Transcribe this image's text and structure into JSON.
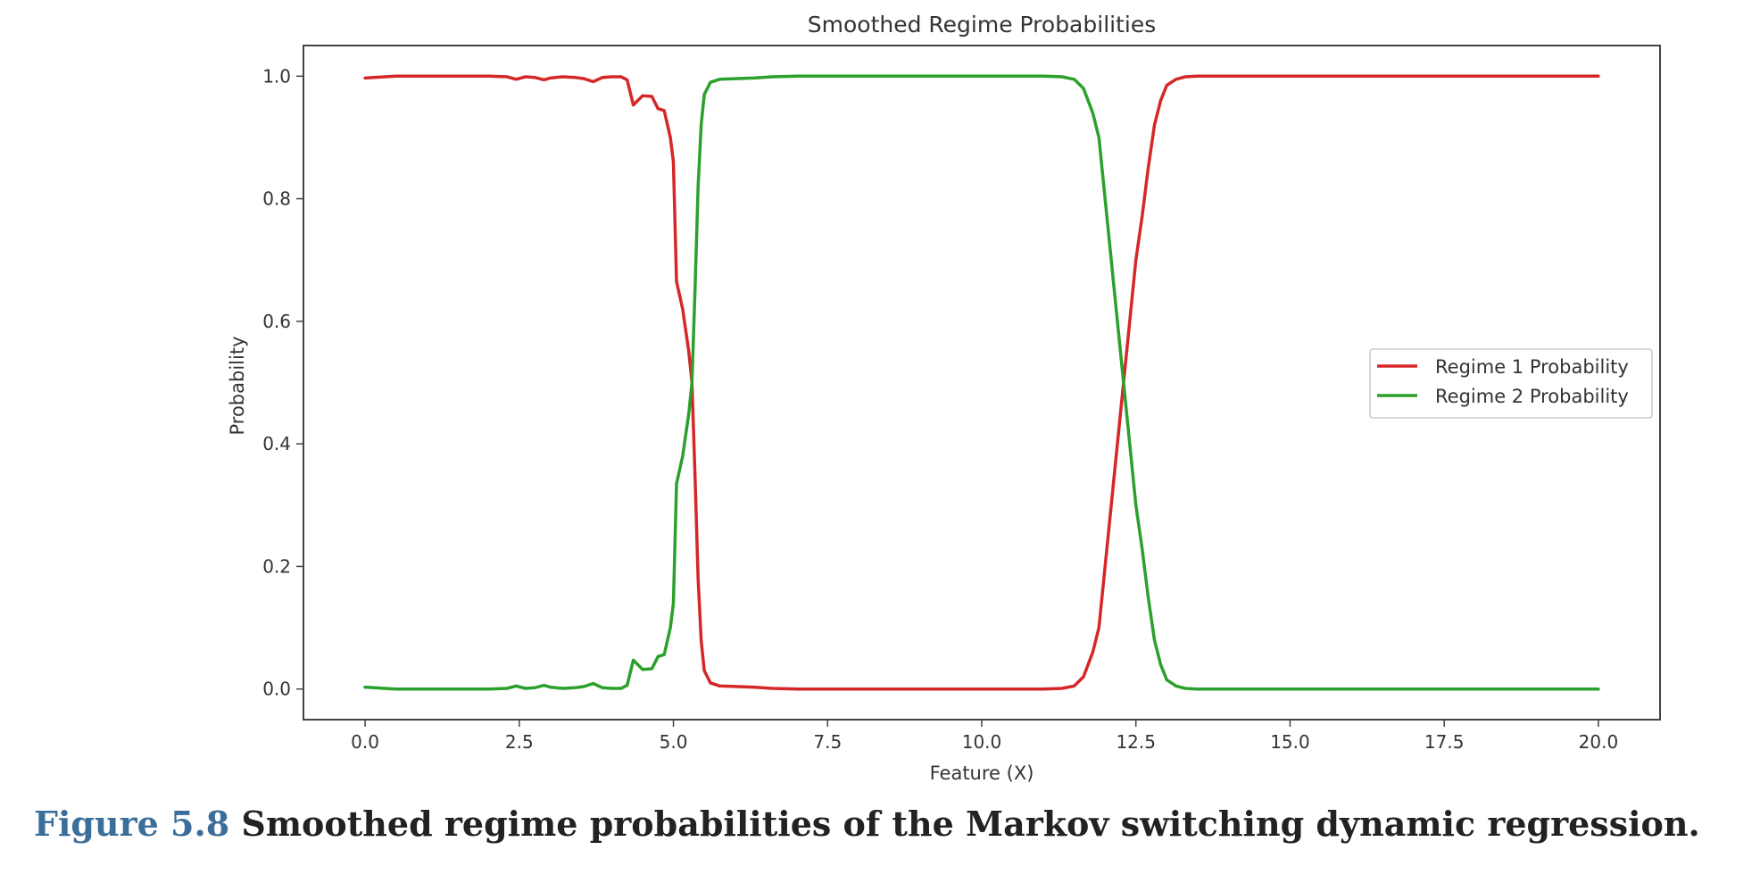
{
  "chart_data": {
    "type": "line",
    "title": "Smoothed Regime Probabilities",
    "xlabel": "Feature (X)",
    "ylabel": "Probability",
    "xlim": [
      -1.0,
      21.0
    ],
    "ylim": [
      -0.05,
      1.05
    ],
    "xticks": [
      "0.0",
      "2.5",
      "5.0",
      "7.5",
      "10.0",
      "12.5",
      "15.0",
      "17.5",
      "20.0"
    ],
    "yticks": [
      "0.0",
      "0.2",
      "0.4",
      "0.6",
      "0.8",
      "1.0"
    ],
    "grid": false,
    "legend_position": "center-right",
    "x": [
      0.0,
      0.5,
      1.0,
      1.5,
      2.0,
      2.3,
      2.45,
      2.6,
      2.75,
      2.9,
      3.0,
      3.2,
      3.4,
      3.55,
      3.7,
      3.85,
      4.0,
      4.15,
      4.25,
      4.35,
      4.5,
      4.65,
      4.75,
      4.85,
      4.95,
      5.0,
      5.05,
      5.15,
      5.25,
      5.3,
      5.35,
      5.4,
      5.45,
      5.5,
      5.6,
      5.75,
      6.0,
      6.3,
      6.6,
      7.0,
      8.0,
      9.0,
      10.0,
      10.5,
      11.0,
      11.3,
      11.5,
      11.65,
      11.8,
      11.9,
      12.0,
      12.1,
      12.2,
      12.3,
      12.4,
      12.5,
      12.6,
      12.7,
      12.8,
      12.9,
      13.0,
      13.15,
      13.3,
      13.5,
      13.8,
      14.0,
      15.0,
      16.0,
      17.0,
      18.0,
      19.0,
      20.0
    ],
    "series": [
      {
        "name": "Regime 1 Probability",
        "color": "#d62728",
        "values": [
          0.997,
          1.0,
          1.0,
          1.0,
          1.0,
          0.999,
          0.995,
          0.999,
          0.998,
          0.994,
          0.997,
          0.999,
          0.998,
          0.996,
          0.991,
          0.998,
          0.999,
          0.999,
          0.994,
          0.953,
          0.968,
          0.967,
          0.947,
          0.944,
          0.9,
          0.86,
          0.665,
          0.62,
          0.55,
          0.5,
          0.35,
          0.18,
          0.08,
          0.03,
          0.01,
          0.005,
          0.004,
          0.003,
          0.001,
          0.0,
          0.0,
          0.0,
          0.0,
          0.0,
          0.0,
          0.001,
          0.005,
          0.02,
          0.06,
          0.1,
          0.2,
          0.3,
          0.4,
          0.5,
          0.6,
          0.7,
          0.77,
          0.85,
          0.92,
          0.96,
          0.985,
          0.995,
          0.999,
          1.0,
          1.0,
          1.0,
          1.0,
          1.0,
          1.0,
          1.0,
          1.0,
          1.0
        ]
      },
      {
        "name": "Regime 2 Probability",
        "color": "#2ca02c",
        "values": [
          0.003,
          0.0,
          0.0,
          0.0,
          0.0,
          0.001,
          0.005,
          0.001,
          0.002,
          0.006,
          0.003,
          0.001,
          0.002,
          0.004,
          0.009,
          0.002,
          0.001,
          0.001,
          0.006,
          0.047,
          0.032,
          0.033,
          0.053,
          0.056,
          0.1,
          0.14,
          0.335,
          0.38,
          0.45,
          0.5,
          0.65,
          0.82,
          0.92,
          0.97,
          0.99,
          0.995,
          0.996,
          0.997,
          0.999,
          1.0,
          1.0,
          1.0,
          1.0,
          1.0,
          1.0,
          0.999,
          0.995,
          0.98,
          0.94,
          0.9,
          0.8,
          0.7,
          0.6,
          0.5,
          0.4,
          0.3,
          0.23,
          0.15,
          0.08,
          0.04,
          0.015,
          0.005,
          0.001,
          0.0,
          0.0,
          0.0,
          0.0,
          0.0,
          0.0,
          0.0,
          0.0,
          0.0
        ]
      }
    ]
  },
  "caption": {
    "number": "Figure 5.8",
    "text": "Smoothed regime probabilities of the Markov switching dynamic regression."
  }
}
